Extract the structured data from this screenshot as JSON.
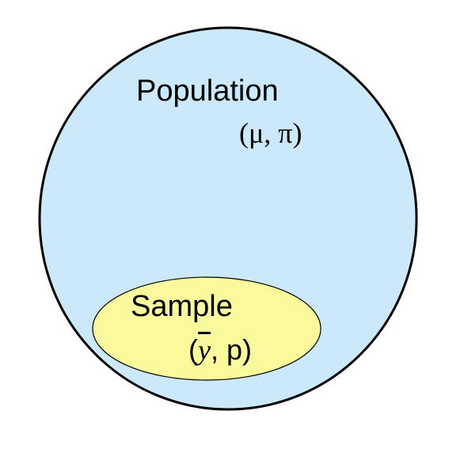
{
  "population": {
    "title": "Population",
    "params": "(μ, π)",
    "fill": "#cce9fb",
    "stroke": "#000000"
  },
  "sample": {
    "title": "Sample",
    "params_open": "(",
    "params_ybar": "y",
    "params_rest": ", p)",
    "fill": "#fafa9c",
    "stroke": "#000000"
  }
}
